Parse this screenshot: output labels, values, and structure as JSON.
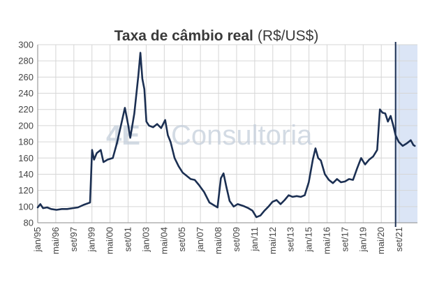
{
  "chart_data": {
    "type": "line",
    "title_main": "Taxa de câmbio real",
    "title_unit": "(R$/US$)",
    "watermark": {
      "logo": "4E",
      "text": "Consultoria"
    },
    "ylim": [
      80,
      300
    ],
    "yticks": [
      "80",
      "100",
      "120",
      "140",
      "160",
      "180",
      "200",
      "220",
      "240",
      "260",
      "280",
      "300"
    ],
    "xlim": [
      1995.0,
      2023.3
    ],
    "xtick_labels": [
      "jan/95",
      "mai/96",
      "set/97",
      "jan/99",
      "mai/00",
      "set/01",
      "jan/03",
      "mai/04",
      "set/05",
      "jan/07",
      "mai/08",
      "set/09",
      "jan/11",
      "mai/12",
      "set/13",
      "jan/15",
      "mai/16",
      "set/17",
      "jan/19",
      "mai/20",
      "set/21"
    ],
    "grid": true,
    "forecast_start": 2021.67,
    "colors": {
      "line": "#1b2f52",
      "forecast_band": "#dbe5f6",
      "grid": "#d6d6d6",
      "axis": "#8a8a8a"
    },
    "series": [
      {
        "x": [
          1995.0,
          1995.2,
          1995.4,
          1995.7,
          1996.0,
          1996.4,
          1996.8,
          1997.2,
          1997.6,
          1998.0,
          1998.4,
          1998.9,
          1999.05,
          1999.2,
          1999.4,
          1999.7,
          1999.9,
          2000.2,
          2000.6,
          2000.9,
          2001.2,
          2001.5,
          2001.75,
          2001.9,
          2002.2,
          2002.5,
          2002.65,
          2002.8,
          2002.95,
          2003.1,
          2003.3,
          2003.6,
          2003.9,
          2004.2,
          2004.5,
          2004.7,
          2004.9,
          2005.2,
          2005.5,
          2005.8,
          2006.1,
          2006.4,
          2006.7,
          2007.0,
          2007.4,
          2007.8,
          2008.1,
          2008.4,
          2008.65,
          2008.85,
          2009.05,
          2009.3,
          2009.6,
          2009.9,
          2010.3,
          2010.7,
          2011.0,
          2011.3,
          2011.6,
          2011.9,
          2012.2,
          2012.5,
          2012.8,
          2013.1,
          2013.4,
          2013.7,
          2014.0,
          2014.3,
          2014.6,
          2014.9,
          2015.2,
          2015.5,
          2015.7,
          2015.9,
          2016.1,
          2016.4,
          2016.7,
          2017.0,
          2017.3,
          2017.6,
          2017.9,
          2018.2,
          2018.5,
          2018.8,
          2019.1,
          2019.4,
          2019.7,
          2020.0,
          2020.3,
          2020.5,
          2020.7,
          2020.9,
          2021.1,
          2021.3,
          2021.5,
          2021.67,
          2021.9,
          2022.2,
          2022.5,
          2022.8,
          2023.0,
          2023.1
        ],
        "y": [
          99,
          103,
          98,
          99,
          97,
          96,
          97,
          97,
          98,
          99,
          102,
          105,
          170,
          158,
          166,
          170,
          155,
          158,
          160,
          178,
          200,
          222,
          200,
          185,
          215,
          262,
          290,
          258,
          245,
          205,
          200,
          198,
          202,
          197,
          207,
          188,
          180,
          160,
          150,
          142,
          138,
          134,
          133,
          127,
          118,
          105,
          102,
          99,
          135,
          141,
          125,
          107,
          100,
          103,
          101,
          98,
          95,
          87,
          89,
          95,
          100,
          106,
          108,
          103,
          108,
          114,
          112,
          113,
          112,
          114,
          130,
          158,
          172,
          160,
          157,
          140,
          133,
          129,
          134,
          130,
          131,
          134,
          133,
          147,
          160,
          152,
          158,
          162,
          170,
          220,
          216,
          215,
          205,
          212,
          200,
          188,
          180,
          175,
          178,
          182,
          176,
          175
        ]
      }
    ]
  }
}
